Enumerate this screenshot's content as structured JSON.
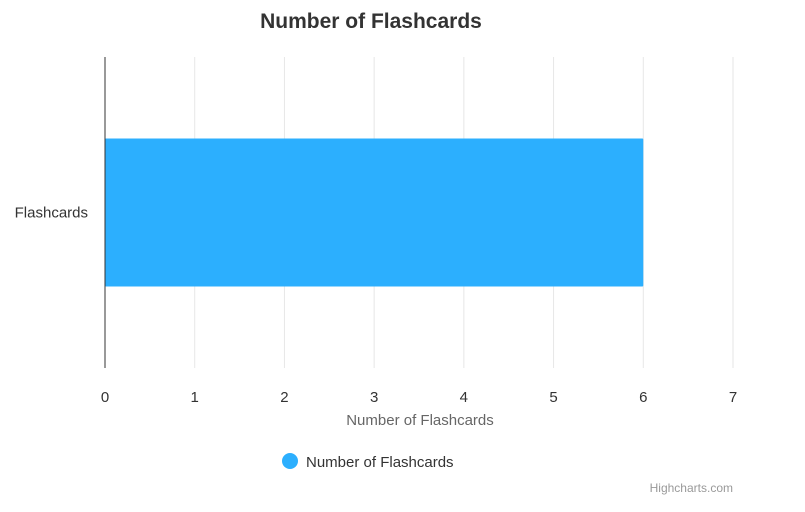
{
  "chart_data": {
    "type": "bar",
    "orientation": "horizontal",
    "title": "Number of Flashcards",
    "categories": [
      "Flashcards"
    ],
    "series": [
      {
        "name": "Number of Flashcards",
        "values": [
          6
        ],
        "color": "#2caffe"
      }
    ],
    "xlabel": "Number of Flashcards",
    "ylabel": "",
    "xlim": [
      0,
      7
    ],
    "x_ticks": [
      "0",
      "1",
      "2",
      "3",
      "4",
      "5",
      "6",
      "7"
    ],
    "grid": true,
    "legend": {
      "position": "bottom-center",
      "marker": "circle"
    }
  },
  "credits": "Highcharts.com",
  "colors": {
    "bar": "#2caffe",
    "grid": "#e6e6e6",
    "axis": "#333333"
  }
}
